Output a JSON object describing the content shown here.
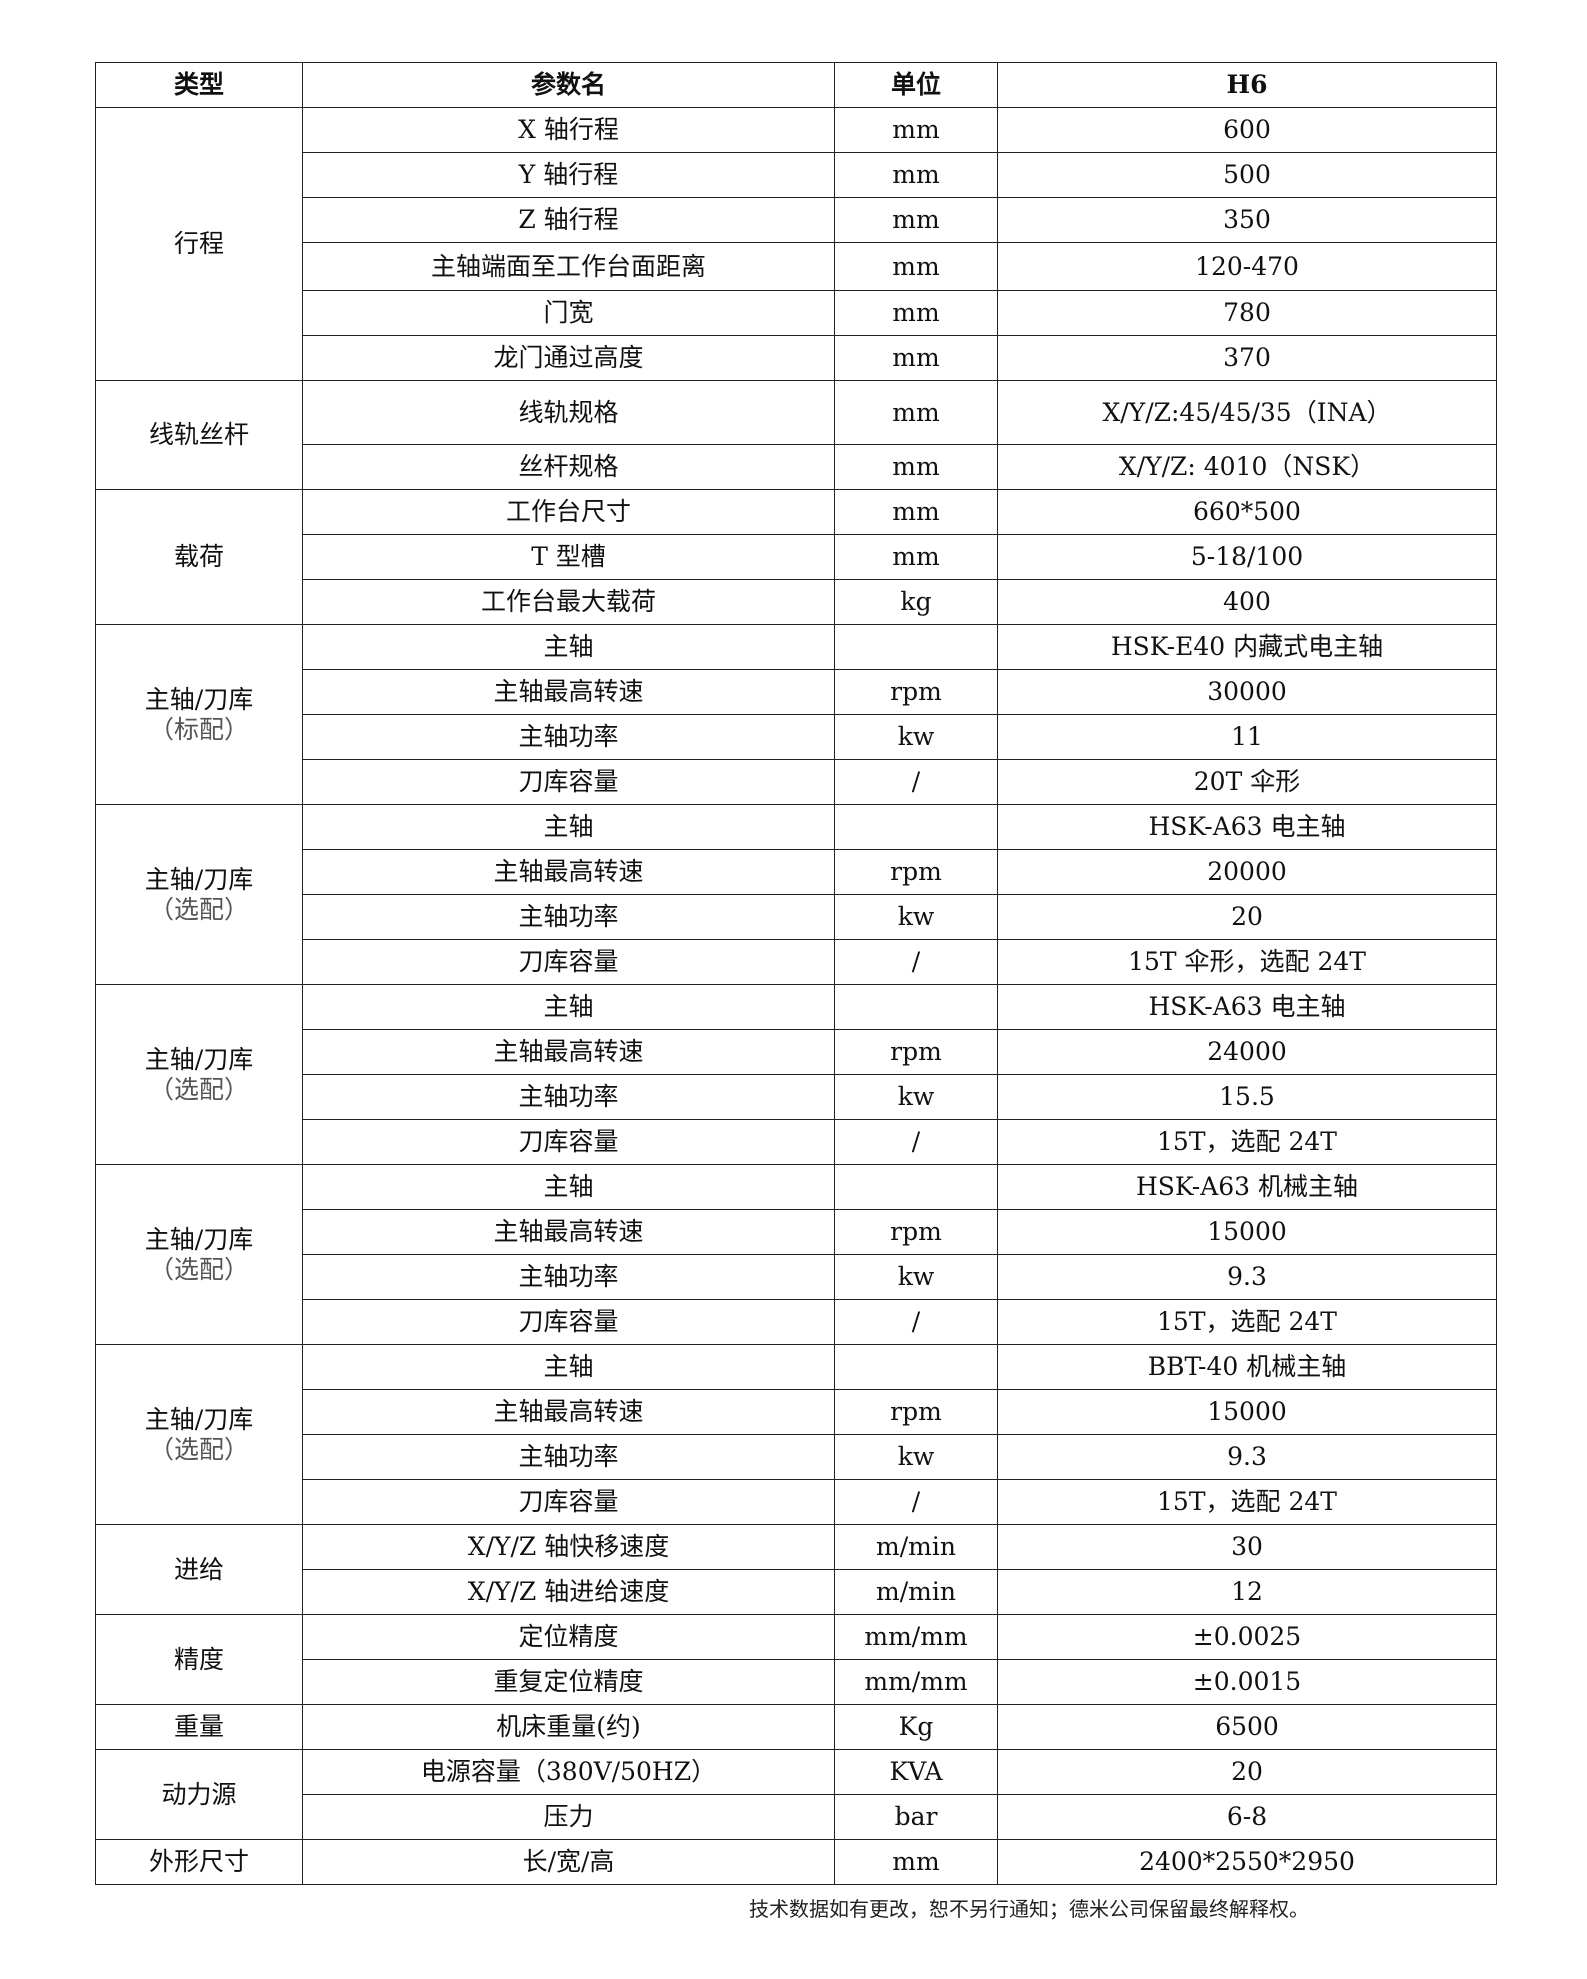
{
  "header": {
    "type": "类型",
    "param": "参数名",
    "unit": "单位",
    "model": "H6"
  },
  "groups": [
    {
      "type": "行程",
      "rows": [
        [
          "X 轴行程",
          "mm",
          "600"
        ],
        [
          "Y 轴行程",
          "mm",
          "500"
        ],
        [
          "Z 轴行程",
          "mm",
          "350"
        ],
        [
          "主轴端面至工作台面距离",
          "mm",
          "120-470"
        ],
        [
          "门宽",
          "mm",
          "780"
        ],
        [
          "龙门通过高度",
          "mm",
          "370"
        ]
      ]
    },
    {
      "type": "线轨丝杆",
      "rows": [
        [
          "线轨规格",
          "mm",
          "X/Y/Z:45/45/35（INA）"
        ],
        [
          "丝杆规格",
          "mm",
          "X/Y/Z: 4010（NSK）"
        ]
      ]
    },
    {
      "type": "载荷",
      "rows": [
        [
          "工作台尺寸",
          "mm",
          "660*500"
        ],
        [
          "T 型槽",
          "mm",
          "5-18/100"
        ],
        [
          "工作台最大载荷",
          "kg",
          "400"
        ]
      ]
    },
    {
      "type": "主轴/刀库",
      "note": "（标配）",
      "rows": [
        [
          "主轴",
          "",
          "HSK-E40 内藏式电主轴"
        ],
        [
          "主轴最高转速",
          "rpm",
          "30000"
        ],
        [
          "主轴功率",
          "kw",
          "11"
        ],
        [
          "刀库容量",
          "/",
          "20T 伞形"
        ]
      ]
    },
    {
      "type": "主轴/刀库",
      "note": "（选配）",
      "rows": [
        [
          "主轴",
          "",
          "HSK-A63 电主轴"
        ],
        [
          "主轴最高转速",
          "rpm",
          "20000"
        ],
        [
          "主轴功率",
          "kw",
          "20"
        ],
        [
          "刀库容量",
          "/",
          "15T 伞形，选配 24T"
        ]
      ]
    },
    {
      "type": "主轴/刀库",
      "note": "（选配）",
      "rows": [
        [
          "主轴",
          "",
          "HSK-A63 电主轴"
        ],
        [
          "主轴最高转速",
          "rpm",
          "24000"
        ],
        [
          "主轴功率",
          "kw",
          "15.5"
        ],
        [
          "刀库容量",
          "/",
          "15T，选配 24T"
        ]
      ]
    },
    {
      "type": "主轴/刀库",
      "note": "（选配）",
      "rows": [
        [
          "主轴",
          "",
          "HSK-A63 机械主轴"
        ],
        [
          "主轴最高转速",
          "rpm",
          "15000"
        ],
        [
          "主轴功率",
          "kw",
          "9.3"
        ],
        [
          "刀库容量",
          "/",
          "15T，选配 24T"
        ]
      ]
    },
    {
      "type": "主轴/刀库",
      "note": "（选配）",
      "rows": [
        [
          "主轴",
          "",
          "BBT-40 机械主轴"
        ],
        [
          "主轴最高转速",
          "rpm",
          "15000"
        ],
        [
          "主轴功率",
          "kw",
          "9.3"
        ],
        [
          "刀库容量",
          "/",
          "15T，选配 24T"
        ]
      ]
    },
    {
      "type": "进给",
      "rows": [
        [
          "X/Y/Z 轴快移速度",
          "m/min",
          "30"
        ],
        [
          "X/Y/Z 轴进给速度",
          "m/min",
          "12"
        ]
      ]
    },
    {
      "type": "精度",
      "rows": [
        [
          "定位精度",
          "mm/mm",
          "±0.0025"
        ],
        [
          "重复定位精度",
          "mm/mm",
          "±0.0015"
        ]
      ]
    },
    {
      "type": "重量",
      "rows": [
        [
          "机床重量(约)",
          "Kg",
          "6500"
        ]
      ]
    },
    {
      "type": "动力源",
      "rows": [
        [
          "电源容量（380V/50HZ）",
          "KVA",
          "20"
        ],
        [
          "压力",
          "bar",
          "6-8"
        ]
      ]
    },
    {
      "type": "外形尺寸",
      "rows": [
        [
          "长/宽/高",
          "mm",
          "2400*2550*2950"
        ]
      ]
    }
  ],
  "footer": "技术数据如有更改，恕不另行通知；德米公司保留最终解释权。"
}
